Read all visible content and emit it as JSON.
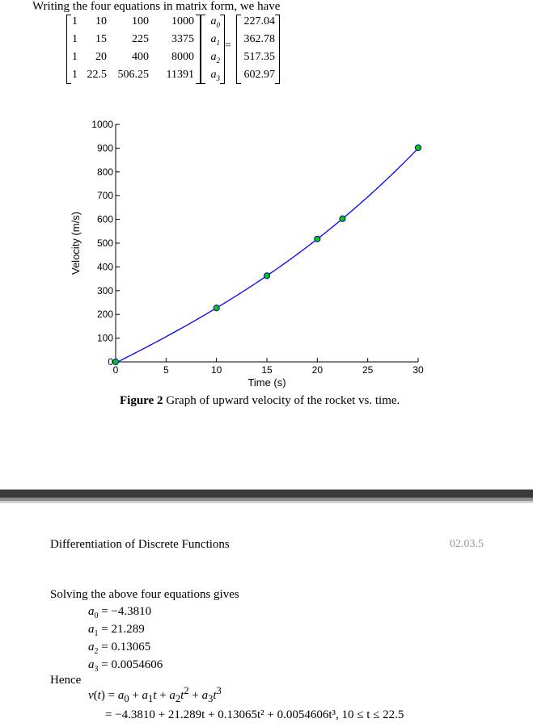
{
  "intro_text": "Writing the four equations in matrix form, we have",
  "matrix": {
    "rows": [
      [
        "1",
        "10",
        "100",
        "1000"
      ],
      [
        "1",
        "15",
        "225",
        "3375"
      ],
      [
        "1",
        "20",
        "400",
        "8000"
      ],
      [
        "1",
        "22.5",
        "506.25",
        "11391"
      ]
    ],
    "unknowns": [
      "a",
      "a",
      "a",
      "a"
    ],
    "unknown_subscripts": [
      "0",
      "1",
      "2",
      "3"
    ],
    "equals": "=",
    "rhs": [
      "227.04",
      "362.78",
      "517.35",
      "602.97"
    ]
  },
  "chart_data": {
    "type": "line",
    "xlabel": "Time (s)",
    "ylabel": "Velocity (m/s)",
    "xlim": [
      0,
      30
    ],
    "ylim": [
      0,
      1000
    ],
    "xticks": [
      0,
      5,
      10,
      15,
      20,
      25,
      30
    ],
    "yticks": [
      0,
      100,
      200,
      300,
      400,
      500,
      600,
      700,
      800,
      900,
      1000
    ],
    "grid": false,
    "series": [
      {
        "kind": "curve",
        "color": "#0000ff",
        "coefficients": [
          -4.381,
          21.289,
          0.13065,
          0.0054606
        ],
        "x_range": [
          0,
          30
        ]
      },
      {
        "kind": "points",
        "color": "#00cc00",
        "edge_color": "#0000cc",
        "x": [
          0,
          10,
          15,
          20,
          22.5,
          30
        ],
        "y": [
          0,
          227.04,
          362.78,
          517.35,
          602.97,
          901.67
        ]
      }
    ]
  },
  "caption": {
    "label": "Figure 2",
    "text": " Graph of upward velocity of the rocket vs. time."
  },
  "page_header": {
    "title": "Differentiation of Discrete Functions",
    "page_number": "02.03.5"
  },
  "solve_text": "Solving the above four equations gives",
  "coefficients": [
    {
      "name": "a",
      "sub": "0",
      "value": "= −4.3810"
    },
    {
      "name": "a",
      "sub": "1",
      "value": "= 21.289"
    },
    {
      "name": "a",
      "sub": "2",
      "value": "= 0.13065"
    },
    {
      "name": "a",
      "sub": "3",
      "value": "= 0.0054606"
    }
  ],
  "hence": "Hence",
  "equation_line2": "= −4.3810 + 21.289t + 0.13065t² + 0.0054606t³,  10 ≤ t ≤ 22.5"
}
